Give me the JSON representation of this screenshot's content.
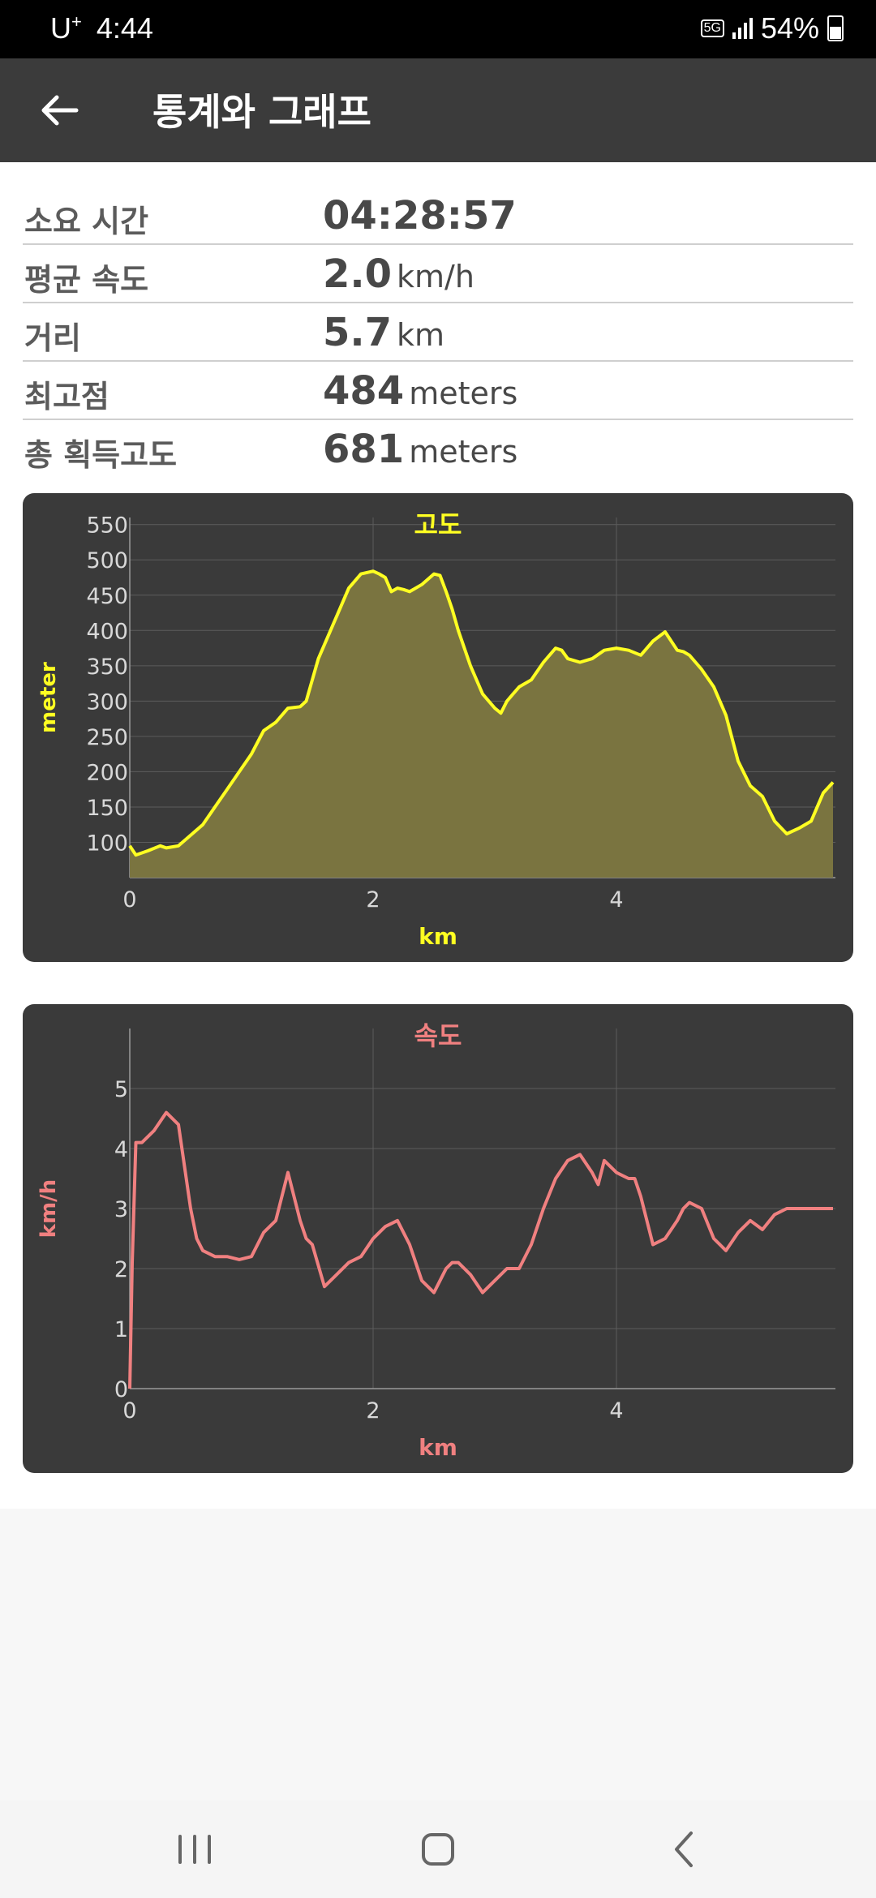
{
  "status_bar": {
    "carrier": "U",
    "carrier_sup": "+",
    "time": "4:44",
    "network": "5G",
    "battery": "54%"
  },
  "app_bar": {
    "title": "통계와 그래프"
  },
  "stats": [
    {
      "label": "소요 시간",
      "value": "04:28:57",
      "unit": ""
    },
    {
      "label": "평균 속도",
      "value": "2.0",
      "unit": "km/h"
    },
    {
      "label": "거리",
      "value": "5.7",
      "unit": "km"
    },
    {
      "label": "최고점",
      "value": "484",
      "unit": "meters"
    },
    {
      "label": "총 획득고도",
      "value": "681",
      "unit": "meters"
    }
  ],
  "chart_data": [
    {
      "type": "area",
      "title": "고도",
      "xlabel": "km",
      "ylabel": "meter",
      "xlim": [
        0,
        5.8
      ],
      "ylim": [
        50,
        560
      ],
      "xticks": [
        0,
        2,
        4
      ],
      "yticks": [
        100,
        150,
        200,
        250,
        300,
        350,
        400,
        450,
        500,
        550
      ],
      "grid": true,
      "line_color": "#ffff22",
      "fill_color": "#7a7440",
      "title_color": "#ffff22",
      "x": [
        0,
        0.05,
        0.15,
        0.25,
        0.3,
        0.4,
        0.5,
        0.6,
        0.7,
        0.8,
        0.9,
        1.0,
        1.1,
        1.2,
        1.3,
        1.4,
        1.45,
        1.5,
        1.55,
        1.6,
        1.7,
        1.8,
        1.9,
        2.0,
        2.05,
        2.1,
        2.15,
        2.2,
        2.25,
        2.3,
        2.4,
        2.5,
        2.55,
        2.6,
        2.65,
        2.7,
        2.8,
        2.9,
        3.0,
        3.05,
        3.1,
        3.15,
        3.2,
        3.3,
        3.4,
        3.5,
        3.55,
        3.6,
        3.7,
        3.8,
        3.9,
        4.0,
        4.1,
        4.2,
        4.3,
        4.4,
        4.5,
        4.55,
        4.6,
        4.65,
        4.7,
        4.8,
        4.9,
        5.0,
        5.1,
        5.2,
        5.3,
        5.4,
        5.5,
        5.6,
        5.65,
        5.7,
        5.78
      ],
      "y": [
        95,
        82,
        88,
        95,
        92,
        95,
        110,
        125,
        150,
        175,
        200,
        225,
        258,
        270,
        290,
        292,
        300,
        330,
        360,
        380,
        420,
        460,
        480,
        484,
        480,
        475,
        455,
        460,
        458,
        455,
        465,
        480,
        478,
        455,
        430,
        400,
        350,
        310,
        290,
        283,
        300,
        310,
        320,
        330,
        355,
        375,
        372,
        360,
        355,
        360,
        372,
        375,
        372,
        365,
        385,
        398,
        372,
        370,
        365,
        355,
        345,
        320,
        280,
        215,
        180,
        165,
        130,
        112,
        120,
        130,
        150,
        170,
        185
      ]
    },
    {
      "type": "line",
      "title": "속도",
      "xlabel": "km",
      "ylabel": "km/h",
      "xlim": [
        0,
        5.8
      ],
      "ylim": [
        0,
        6
      ],
      "xticks": [
        0,
        2,
        4
      ],
      "yticks": [
        0,
        1,
        2,
        3,
        4,
        5
      ],
      "grid": true,
      "line_color": "#f08080",
      "title_color": "#f08080",
      "x": [
        0,
        0.02,
        0.05,
        0.1,
        0.2,
        0.3,
        0.4,
        0.5,
        0.55,
        0.6,
        0.7,
        0.8,
        0.9,
        1.0,
        1.1,
        1.2,
        1.3,
        1.4,
        1.45,
        1.5,
        1.6,
        1.7,
        1.8,
        1.9,
        2.0,
        2.1,
        2.2,
        2.3,
        2.4,
        2.5,
        2.55,
        2.6,
        2.65,
        2.7,
        2.8,
        2.9,
        3.0,
        3.1,
        3.2,
        3.3,
        3.4,
        3.5,
        3.6,
        3.7,
        3.8,
        3.85,
        3.9,
        4.0,
        4.1,
        4.15,
        4.2,
        4.3,
        4.4,
        4.5,
        4.55,
        4.6,
        4.7,
        4.8,
        4.9,
        5.0,
        5.1,
        5.2,
        5.3,
        5.4,
        5.45,
        5.5,
        5.6,
        5.7,
        5.78
      ],
      "y": [
        0,
        2.1,
        4.1,
        4.1,
        4.3,
        4.6,
        4.4,
        3.0,
        2.5,
        2.3,
        2.2,
        2.2,
        2.15,
        2.2,
        2.6,
        2.8,
        3.6,
        2.8,
        2.5,
        2.4,
        1.7,
        1.9,
        2.1,
        2.2,
        2.5,
        2.7,
        2.8,
        2.4,
        1.8,
        1.6,
        1.8,
        2.0,
        2.1,
        2.1,
        1.9,
        1.6,
        1.8,
        2.0,
        2.0,
        2.4,
        3.0,
        3.5,
        3.8,
        3.9,
        3.6,
        3.4,
        3.8,
        3.6,
        3.5,
        3.5,
        3.2,
        2.4,
        2.5,
        2.8,
        3.0,
        3.1,
        3.0,
        2.5,
        2.3,
        2.6,
        2.8,
        2.65,
        2.9,
        3.0,
        3.0,
        3.0,
        3.0,
        3.0,
        3.0
      ]
    }
  ]
}
